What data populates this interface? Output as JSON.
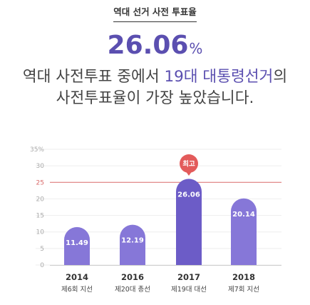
{
  "header": {
    "label": "역대 선거 사전 투표율"
  },
  "headline_value": {
    "number": "26.06",
    "unit": "%"
  },
  "headline_text": {
    "line1_pre": "역대 사전투표 중에서 ",
    "line1_hl": "19대 대통령선거",
    "line1_post": "의",
    "line2": "사전투표율이 가장 높았습니다."
  },
  "colors": {
    "bar": "#8677d8",
    "bar_dark": "#6c5cc7",
    "reference": "#d96a6a",
    "grid": "#eeeeee",
    "badge": "#e35b5b",
    "accent": "#5b4fb0"
  },
  "chart_data": {
    "type": "bar",
    "categories": [
      "2014",
      "2016",
      "2017",
      "2018"
    ],
    "subcategories": [
      "제6회 지선",
      "제20대 총선",
      "제19대 대선",
      "제7회 지선"
    ],
    "values": [
      11.49,
      12.19,
      26.06,
      20.14
    ],
    "value_labels": [
      "11.49",
      "12.19",
      "26.06",
      "20.14"
    ],
    "highlight_index": 2,
    "highlight_label": "최고",
    "y_ticks": [
      {
        "value": 0,
        "label": "0"
      },
      {
        "value": 5,
        "label": "5"
      },
      {
        "value": 10,
        "label": "10"
      },
      {
        "value": 15,
        "label": "15"
      },
      {
        "value": 20,
        "label": "20"
      },
      {
        "value": 25,
        "label": "25"
      },
      {
        "value": 30,
        "label": "30"
      },
      {
        "value": 35,
        "label": "35%"
      }
    ],
    "reference_line": {
      "value": 25
    },
    "ylim": [
      0,
      35
    ],
    "grid": true
  }
}
